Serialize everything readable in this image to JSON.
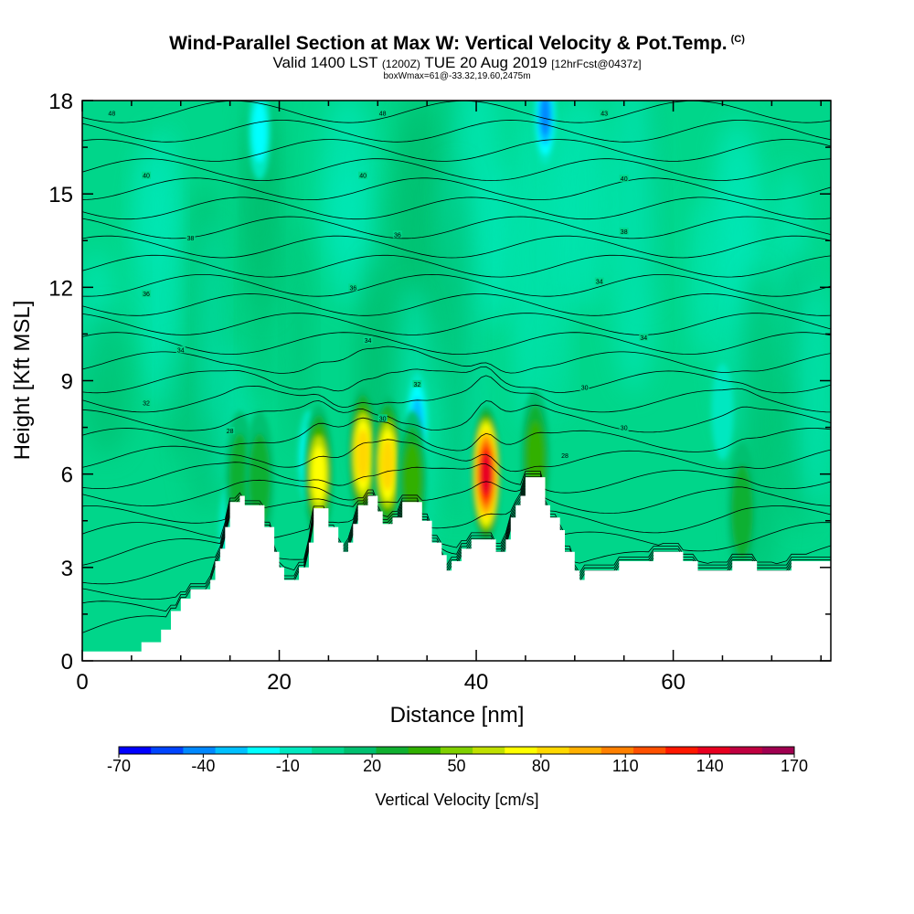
{
  "chart_data": {
    "type": "heatmap",
    "title": "Wind-Parallel Section at Max W: Vertical Velocity & Pot.Temp.",
    "title_mark": "(C)",
    "subtitle_main": "Valid 1400 LST",
    "subtitle_z": "(1200Z)",
    "subtitle_date": "TUE 20 Aug 2019",
    "subtitle_fcst": "[12hrFcst@0437z]",
    "note": "boxWmax=61@-33.32,19.60,2475m",
    "xlabel": "Distance [nm]",
    "ylabel": "Height [Kft MSL]",
    "xlim": [
      0,
      76
    ],
    "ylim": [
      0,
      18
    ],
    "xticks": [
      0,
      20,
      40,
      60
    ],
    "yticks": [
      0,
      3,
      6,
      9,
      12,
      15,
      18
    ],
    "colorbar": {
      "label": "Vertical Velocity [cm/s]",
      "ticks": [
        -70,
        -40,
        -10,
        20,
        50,
        80,
        110,
        140,
        170
      ],
      "range": [
        -70,
        170
      ],
      "colors": [
        "#0000ff",
        "#0044ff",
        "#0088ff",
        "#00c0ff",
        "#00ffff",
        "#00e8c0",
        "#00d890",
        "#00c070",
        "#10b030",
        "#30b000",
        "#80d000",
        "#c0e000",
        "#ffff00",
        "#ffd800",
        "#ffb000",
        "#ff8000",
        "#ff5000",
        "#ff1800",
        "#e80020",
        "#c00040",
        "#a00050"
      ]
    },
    "terrain": [
      [
        0,
        0.3
      ],
      [
        6,
        0.3
      ],
      [
        6,
        0.6
      ],
      [
        8,
        0.6
      ],
      [
        8,
        1.0
      ],
      [
        9,
        1.0
      ],
      [
        9,
        1.6
      ],
      [
        10,
        1.6
      ],
      [
        10,
        2.0
      ],
      [
        11,
        2.0
      ],
      [
        11,
        2.3
      ],
      [
        13,
        2.3
      ],
      [
        13,
        2.6
      ],
      [
        13.5,
        2.6
      ],
      [
        13.5,
        3.2
      ],
      [
        14,
        3.2
      ],
      [
        14,
        3.6
      ],
      [
        14.5,
        3.6
      ],
      [
        14.5,
        4.3
      ],
      [
        15,
        4.3
      ],
      [
        15,
        5.1
      ],
      [
        16,
        5.1
      ],
      [
        16,
        5.3
      ],
      [
        16.5,
        5.3
      ],
      [
        16.5,
        5.0
      ],
      [
        18.5,
        5.0
      ],
      [
        18.5,
        4.3
      ],
      [
        19.5,
        4.3
      ],
      [
        19.5,
        3.5
      ],
      [
        20,
        3.5
      ],
      [
        20,
        3.0
      ],
      [
        20.5,
        3.0
      ],
      [
        20.5,
        2.6
      ],
      [
        22,
        2.6
      ],
      [
        22,
        3.0
      ],
      [
        23,
        3.0
      ],
      [
        23,
        3.8
      ],
      [
        23.5,
        3.8
      ],
      [
        23.5,
        4.9
      ],
      [
        25,
        4.9
      ],
      [
        25,
        4.3
      ],
      [
        26,
        4.3
      ],
      [
        26,
        3.8
      ],
      [
        26.5,
        3.8
      ],
      [
        26.5,
        3.5
      ],
      [
        27,
        3.5
      ],
      [
        27,
        3.8
      ],
      [
        27.5,
        3.8
      ],
      [
        27.5,
        4.4
      ],
      [
        28,
        4.4
      ],
      [
        28,
        5.0
      ],
      [
        29,
        5.0
      ],
      [
        29,
        5.3
      ],
      [
        30,
        5.3
      ],
      [
        30,
        4.8
      ],
      [
        30.5,
        4.8
      ],
      [
        30.5,
        4.4
      ],
      [
        31.5,
        4.4
      ],
      [
        31.5,
        4.6
      ],
      [
        32.5,
        4.6
      ],
      [
        32.5,
        5.1
      ],
      [
        34.5,
        5.1
      ],
      [
        34.5,
        4.5
      ],
      [
        35.5,
        4.5
      ],
      [
        35.5,
        3.8
      ],
      [
        36.5,
        3.8
      ],
      [
        36.5,
        3.4
      ],
      [
        37,
        3.4
      ],
      [
        37,
        2.9
      ],
      [
        37.5,
        2.9
      ],
      [
        37.5,
        3.2
      ],
      [
        38.5,
        3.2
      ],
      [
        38.5,
        3.6
      ],
      [
        39.5,
        3.6
      ],
      [
        39.5,
        3.9
      ],
      [
        42,
        3.9
      ],
      [
        42,
        3.5
      ],
      [
        43,
        3.5
      ],
      [
        43,
        3.9
      ],
      [
        43.5,
        3.9
      ],
      [
        43.5,
        4.6
      ],
      [
        44,
        4.6
      ],
      [
        44,
        5.0
      ],
      [
        44.5,
        5.0
      ],
      [
        44.5,
        5.3
      ],
      [
        45,
        5.3
      ],
      [
        45,
        5.9
      ],
      [
        47,
        5.9
      ],
      [
        47,
        5.0
      ],
      [
        47.5,
        5.0
      ],
      [
        47.5,
        4.6
      ],
      [
        48.5,
        4.6
      ],
      [
        48.5,
        4.2
      ],
      [
        49,
        4.2
      ],
      [
        49,
        3.5
      ],
      [
        50,
        3.5
      ],
      [
        50,
        2.9
      ],
      [
        50.5,
        2.9
      ],
      [
        50.5,
        2.6
      ],
      [
        51,
        2.6
      ],
      [
        51,
        2.9
      ],
      [
        54.5,
        2.9
      ],
      [
        54.5,
        3.2
      ],
      [
        58,
        3.2
      ],
      [
        58,
        3.5
      ],
      [
        61,
        3.5
      ],
      [
        61,
        3.2
      ],
      [
        62.5,
        3.2
      ],
      [
        62.5,
        2.9
      ],
      [
        66,
        2.9
      ],
      [
        66,
        3.2
      ],
      [
        68.5,
        3.2
      ],
      [
        68.5,
        2.9
      ],
      [
        72,
        2.9
      ],
      [
        72,
        3.2
      ],
      [
        76,
        3.2
      ]
    ],
    "updrafts": [
      {
        "x": 16,
        "y": 5.8,
        "peak": 40
      },
      {
        "x": 18,
        "y": 5.8,
        "peak": 35
      },
      {
        "x": 24,
        "y": 6.0,
        "peak": 75
      },
      {
        "x": 28.5,
        "y": 6.6,
        "peak": 90
      },
      {
        "x": 31,
        "y": 6.3,
        "peak": 85
      },
      {
        "x": 33.5,
        "y": 5.8,
        "peak": 55
      },
      {
        "x": 41,
        "y": 6.0,
        "peak": 150
      },
      {
        "x": 46,
        "y": 6.5,
        "peak": 45
      },
      {
        "x": 67,
        "y": 4.8,
        "peak": 40
      }
    ],
    "downdrafts": [
      {
        "x": 23,
        "y": 6.5,
        "peak": -20
      },
      {
        "x": 34,
        "y": 7.7,
        "peak": -30
      },
      {
        "x": 47,
        "y": 17.5,
        "peak": -40
      },
      {
        "x": 18,
        "y": 17.0,
        "peak": -20
      },
      {
        "x": 15,
        "y": 4.2,
        "peak": -15
      },
      {
        "x": 65,
        "y": 8.0,
        "peak": -15
      }
    ],
    "isentrope_labels": [
      {
        "text": "48",
        "x": 3,
        "y": 17.6
      },
      {
        "text": "48",
        "x": 30.5,
        "y": 17.6
      },
      {
        "text": "43",
        "x": 53,
        "y": 17.6
      },
      {
        "text": "40",
        "x": 6.5,
        "y": 15.6
      },
      {
        "text": "40",
        "x": 28.5,
        "y": 15.6
      },
      {
        "text": "40",
        "x": 55,
        "y": 15.5
      },
      {
        "text": "38",
        "x": 11,
        "y": 13.6
      },
      {
        "text": "36",
        "x": 32,
        "y": 13.7
      },
      {
        "text": "38",
        "x": 55,
        "y": 13.8
      },
      {
        "text": "36",
        "x": 6.5,
        "y": 11.8
      },
      {
        "text": "36",
        "x": 27.5,
        "y": 12.0
      },
      {
        "text": "34",
        "x": 52.5,
        "y": 12.2
      },
      {
        "text": "34",
        "x": 10,
        "y": 10.0
      },
      {
        "text": "34",
        "x": 29,
        "y": 10.3
      },
      {
        "text": "34",
        "x": 57,
        "y": 10.4
      },
      {
        "text": "32",
        "x": 6.5,
        "y": 8.3
      },
      {
        "text": "32",
        "x": 34,
        "y": 8.9
      },
      {
        "text": "30",
        "x": 51,
        "y": 8.8
      },
      {
        "text": "28",
        "x": 15,
        "y": 7.4
      },
      {
        "text": "30",
        "x": 30.5,
        "y": 7.8
      },
      {
        "text": "30",
        "x": 55,
        "y": 7.5
      },
      {
        "text": "28",
        "x": 49,
        "y": 6.6
      }
    ]
  }
}
